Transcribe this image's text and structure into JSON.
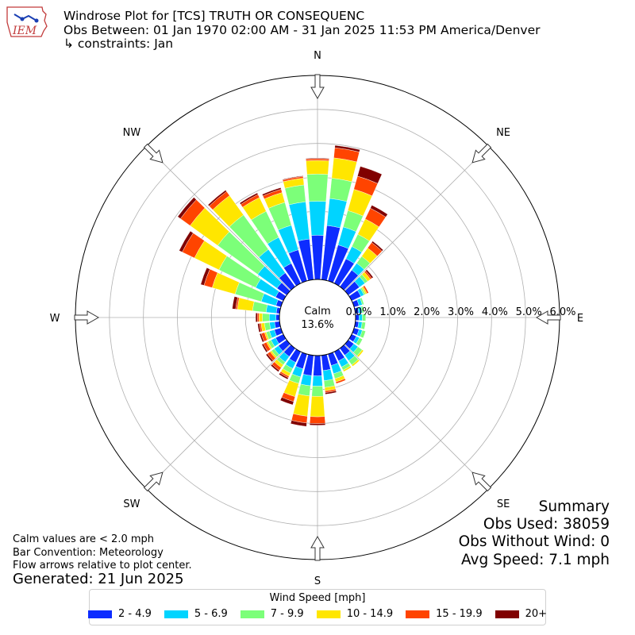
{
  "header": {
    "line1": "Windrose Plot for [TCS] TRUTH OR CONSEQUENC",
    "line2": "Obs Between: 01 Jan 1970 02:00 AM - 31 Jan 2025 11:53 PM America/Denver",
    "line3": "↳ constraints: Jan"
  },
  "logo": {
    "text": "IEM"
  },
  "notes": {
    "calm": "Calm values are < 2.0 mph",
    "bar": "Bar Convention: Meteorology",
    "flow": "Flow arrows relative to plot center."
  },
  "generated": "Generated: 21 Jun 2025",
  "summary": {
    "title": "Summary",
    "obs_used": "Obs Used: 38059",
    "obs_without_wind": "Obs Without Wind: 0",
    "avg_speed": "Avg Speed: 7.1 mph"
  },
  "legend": {
    "title": "Wind Speed [mph]",
    "items": [
      {
        "label": "2 - 4.9",
        "color": "#0d2cff"
      },
      {
        "label": "5 - 6.9",
        "color": "#00d4ff"
      },
      {
        "label": "7 - 9.9",
        "color": "#7cff79"
      },
      {
        "label": "10 - 14.9",
        "color": "#ffe600"
      },
      {
        "label": "15 - 19.9",
        "color": "#ff4400"
      },
      {
        "label": "20+",
        "color": "#800000"
      }
    ]
  },
  "chart_data": {
    "type": "windrose",
    "calm_label": "Calm",
    "calm_value": "13.6%",
    "radial_ticks": [
      "0.0%",
      "1.0%",
      "2.0%",
      "3.0%",
      "4.0%",
      "5.0%",
      "6.0%"
    ],
    "rmax": 6.0,
    "compass": [
      "N",
      "NE",
      "E",
      "SE",
      "S",
      "SW",
      "W",
      "NW"
    ],
    "bin_width_deg": 10,
    "directions": [
      0,
      10,
      20,
      30,
      40,
      50,
      60,
      70,
      80,
      90,
      100,
      110,
      120,
      130,
      140,
      150,
      160,
      170,
      180,
      190,
      200,
      210,
      220,
      230,
      240,
      250,
      260,
      270,
      280,
      290,
      300,
      310,
      320,
      330,
      340,
      350
    ],
    "series": [
      {
        "name": "2 - 4.9",
        "values": [
          1.3,
          1.6,
          1.1,
          0.8,
          0.6,
          0.4,
          0.3,
          0.15,
          0.1,
          0.1,
          0.1,
          0.15,
          0.15,
          0.2,
          0.25,
          0.3,
          0.35,
          0.45,
          0.6,
          0.6,
          0.45,
          0.35,
          0.3,
          0.3,
          0.25,
          0.2,
          0.15,
          0.1,
          0.1,
          0.15,
          0.25,
          0.35,
          0.5,
          0.65,
          0.95,
          1.2
        ]
      },
      {
        "name": "5 - 6.9",
        "values": [
          1.0,
          0.8,
          0.55,
          0.4,
          0.25,
          0.2,
          0.1,
          0.1,
          0.1,
          0.1,
          0.1,
          0.1,
          0.1,
          0.15,
          0.2,
          0.2,
          0.25,
          0.3,
          0.3,
          0.3,
          0.25,
          0.2,
          0.2,
          0.15,
          0.15,
          0.15,
          0.15,
          0.2,
          0.3,
          0.45,
          0.65,
          0.7,
          0.85,
          0.85,
          0.75,
          1.1
        ]
      },
      {
        "name": "7 - 9.9",
        "values": [
          0.8,
          0.6,
          0.5,
          0.4,
          0.25,
          0.1,
          0.05,
          0.05,
          0.05,
          0.1,
          0.1,
          0.1,
          0.1,
          0.15,
          0.15,
          0.1,
          0.15,
          0.2,
          0.3,
          0.3,
          0.2,
          0.15,
          0.1,
          0.1,
          0.1,
          0.1,
          0.15,
          0.2,
          0.4,
          0.8,
          1.2,
          1.45,
          1.25,
          0.85,
          0.7,
          0.5
        ]
      },
      {
        "name": "10 - 14.9",
        "values": [
          0.4,
          0.6,
          0.65,
          0.5,
          0.3,
          0.1,
          0.05,
          0.0,
          0.0,
          0.0,
          0.0,
          0.0,
          0.0,
          0.05,
          0.05,
          0.05,
          0.1,
          0.1,
          0.6,
          0.6,
          0.4,
          0.1,
          0.1,
          0.05,
          0.05,
          0.05,
          0.1,
          0.1,
          0.45,
          0.7,
          0.8,
          1.0,
          0.7,
          0.45,
          0.3,
          0.2
        ]
      },
      {
        "name": "15 - 19.9",
        "values": [
          0.05,
          0.3,
          0.4,
          0.35,
          0.2,
          0.05,
          0.05,
          0.0,
          0.0,
          0.0,
          0.0,
          0.0,
          0.0,
          0.0,
          0.0,
          0.0,
          0.05,
          0.05,
          0.2,
          0.2,
          0.15,
          0.05,
          0.1,
          0.1,
          0.1,
          0.1,
          0.05,
          0.05,
          0.05,
          0.25,
          0.4,
          0.35,
          0.15,
          0.1,
          0.1,
          0.05
        ]
      },
      {
        "name": "20+",
        "values": [
          0.02,
          0.07,
          0.3,
          0.1,
          0.05,
          0.05,
          0.0,
          0.0,
          0.0,
          0.0,
          0.0,
          0.0,
          0.0,
          0.0,
          0.0,
          0.0,
          0.0,
          0.05,
          0.05,
          0.1,
          0.1,
          0.05,
          0.05,
          0.05,
          0.05,
          0.05,
          0.05,
          0.05,
          0.1,
          0.1,
          0.1,
          0.1,
          0.05,
          0.05,
          0.05,
          0.02
        ]
      }
    ]
  }
}
